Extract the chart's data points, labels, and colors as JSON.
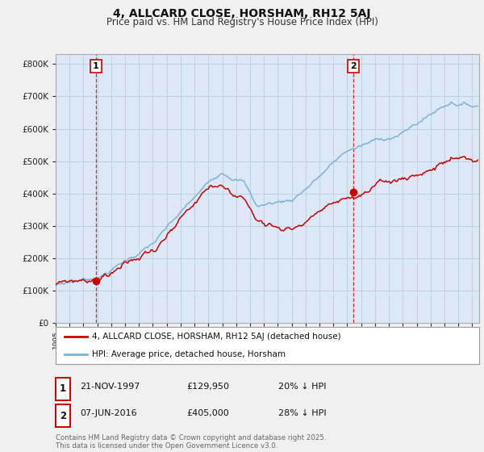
{
  "title": "4, ALLCARD CLOSE, HORSHAM, RH12 5AJ",
  "subtitle": "Price paid vs. HM Land Registry's House Price Index (HPI)",
  "ytick_vals": [
    0,
    100000,
    200000,
    300000,
    400000,
    500000,
    600000,
    700000,
    800000
  ],
  "ylim": [
    0,
    830000
  ],
  "xlim_start": 1995.0,
  "xlim_end": 2025.5,
  "sale1_year": 1997.9,
  "sale1_price": 129950,
  "sale2_year": 2016.44,
  "sale2_price": 405000,
  "legend_line1": "4, ALLCARD CLOSE, HORSHAM, RH12 5AJ (detached house)",
  "legend_line2": "HPI: Average price, detached house, Horsham",
  "annotation1_date": "21-NOV-1997",
  "annotation1_price": "£129,950",
  "annotation1_hpi": "20% ↓ HPI",
  "annotation2_date": "07-JUN-2016",
  "annotation2_price": "£405,000",
  "annotation2_hpi": "28% ↓ HPI",
  "copyright_text": "Contains HM Land Registry data © Crown copyright and database right 2025.\nThis data is licensed under the Open Government Licence v3.0.",
  "price_color": "#cc0000",
  "hpi_color": "#7ab3d4",
  "bg_color": "#f0f0f0",
  "plot_bg_color": "#dce8f5",
  "grid_color": "#b8cfe0"
}
